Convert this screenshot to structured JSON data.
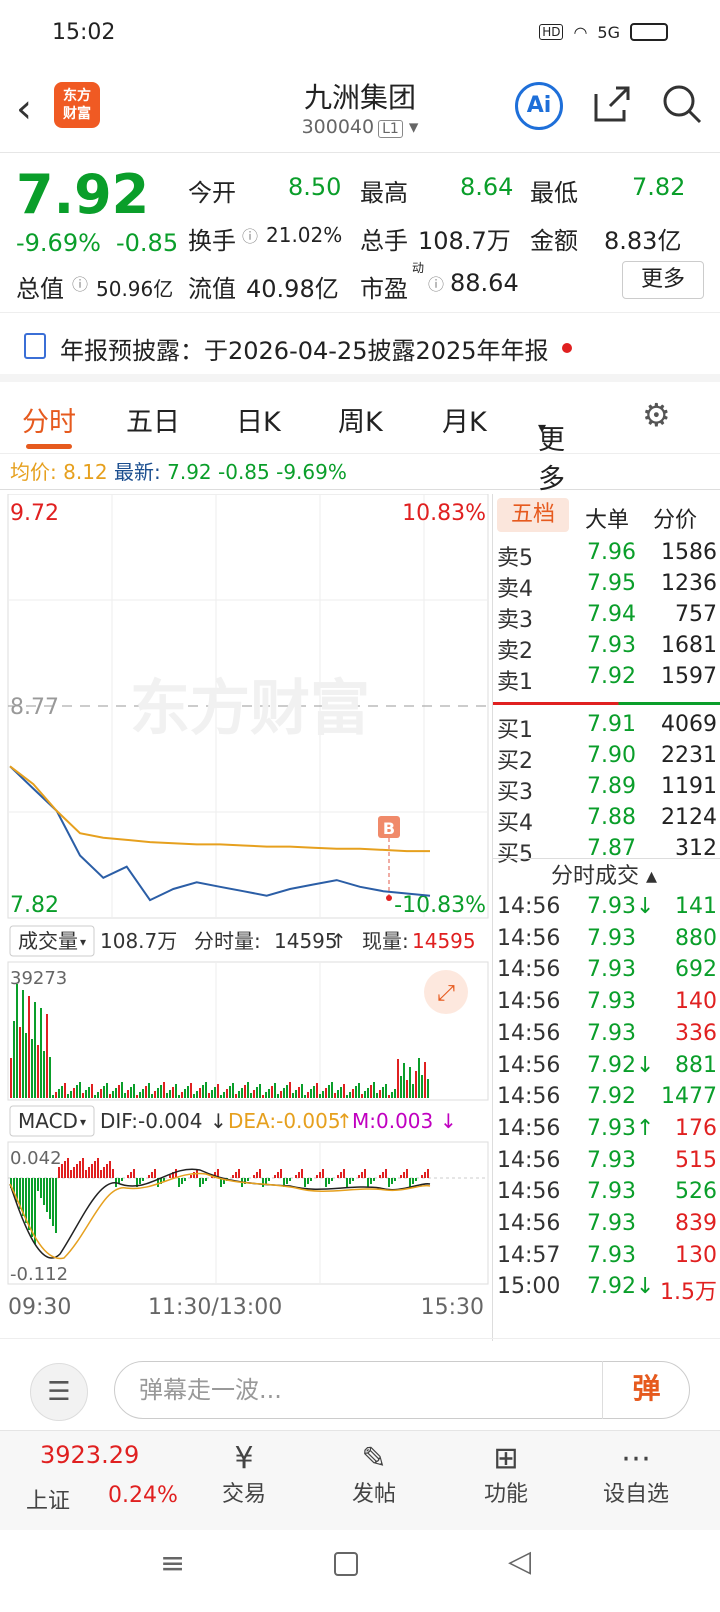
{
  "status": {
    "time": "15:02",
    "net": "5G"
  },
  "nav": {
    "logo": "东方\n财富",
    "title": "九洲集团",
    "code": "300040",
    "level": "L1",
    "ai": "Ai"
  },
  "quote": {
    "price": "7.92",
    "pct": "-9.69%",
    "chg": "-0.85",
    "open_label": "今开",
    "open": "8.50",
    "high_label": "最高",
    "high": "8.64",
    "low_label": "最低",
    "low": "7.82",
    "turnover_label": "换手",
    "turnover": "21.02%",
    "volume_label": "总手",
    "volume": "108.7万",
    "amount_label": "金额",
    "amount": "8.83亿",
    "mcap_label": "总值",
    "mcap": "50.96亿",
    "float_label": "流值",
    "float": "40.98亿",
    "pe_label": "市盈",
    "pe_sup": "动",
    "pe": "88.64",
    "more": "更多"
  },
  "notice": {
    "text": "年报预披露：于2026-04-25披露2025年年报"
  },
  "tabs": [
    "分时",
    "五日",
    "日K",
    "周K",
    "月K",
    "更多"
  ],
  "infoline": {
    "avg_label": "均价:",
    "avg": "8.12",
    "latest_label": "最新:",
    "latest": "7.92",
    "chg": "-0.85",
    "pct": "-9.69%"
  },
  "chart_data": {
    "type": "line",
    "title": "",
    "y_top": "9.72",
    "y_mid": "8.77",
    "y_bottom": "7.82",
    "pct_top": "10.83%",
    "pct_bottom": "-10.83%",
    "ylim": [
      7.82,
      9.72
    ],
    "series": [
      {
        "values": [
          8.5,
          8.4,
          8.3,
          8.1,
          8.0,
          8.05,
          7.9,
          7.95,
          7.98,
          7.96,
          7.94,
          7.92,
          7.95,
          7.97,
          7.99,
          7.96,
          7.94,
          7.93,
          7.92
        ]
      },
      {
        "values": [
          8.5,
          8.42,
          8.3,
          8.2,
          8.18,
          8.17,
          8.16,
          8.155,
          8.15,
          8.15,
          8.145,
          8.14,
          8.14,
          8.135,
          8.13,
          8.13,
          8.125,
          8.12,
          8.12
        ]
      }
    ],
    "marker": "B",
    "x_ticks": [
      "09:30",
      "11:30/13:00",
      "15:30"
    ]
  },
  "volume": {
    "label": "成交量",
    "total": "108.7万",
    "period_label": "分时量:",
    "period": "14595",
    "now_label": "现量:",
    "now": "14595",
    "max": "39273"
  },
  "macd": {
    "label": "MACD",
    "dif": "DIF:-0.004",
    "dea": "DEA:-0.005",
    "m": "M:0.003",
    "top": "0.042",
    "bottom": "-0.112"
  },
  "book": {
    "tabs": [
      "五档",
      "大单",
      "分价"
    ],
    "asks": [
      [
        "卖5",
        "7.96",
        "1586"
      ],
      [
        "卖4",
        "7.95",
        "1236"
      ],
      [
        "卖3",
        "7.94",
        "757"
      ],
      [
        "卖2",
        "7.93",
        "1681"
      ],
      [
        "卖1",
        "7.92",
        "1597"
      ]
    ],
    "bids": [
      [
        "买1",
        "7.91",
        "4069"
      ],
      [
        "买2",
        "7.90",
        "2231"
      ],
      [
        "买3",
        "7.89",
        "1191"
      ],
      [
        "买4",
        "7.88",
        "2124"
      ],
      [
        "买5",
        "7.87",
        "312"
      ]
    ],
    "trades_title": "分时成交",
    "trades": [
      [
        "14:56",
        "7.93↓",
        "141",
        "g"
      ],
      [
        "14:56",
        "7.93",
        "880",
        "g"
      ],
      [
        "14:56",
        "7.93",
        "692",
        "g"
      ],
      [
        "14:56",
        "7.93",
        "140",
        "r"
      ],
      [
        "14:56",
        "7.93",
        "336",
        "r"
      ],
      [
        "14:56",
        "7.92↓",
        "881",
        "g"
      ],
      [
        "14:56",
        "7.92",
        "1477",
        "g"
      ],
      [
        "14:56",
        "7.93↑",
        "176",
        "r"
      ],
      [
        "14:56",
        "7.93",
        "515",
        "r"
      ],
      [
        "14:56",
        "7.93",
        "526",
        "g"
      ],
      [
        "14:56",
        "7.93",
        "839",
        "r"
      ],
      [
        "14:57",
        "7.93",
        "130",
        "r"
      ],
      [
        "15:00",
        "7.92↓",
        "1.5万",
        "r"
      ]
    ]
  },
  "danmu": {
    "placeholder": "弹幕走一波...",
    "btn": "弹"
  },
  "bottom": {
    "index_value": "3923.29",
    "index_name": "上证",
    "index_pct": "0.24%",
    "trade": "交易",
    "post": "发帖",
    "func": "功能",
    "watch": "设自选"
  }
}
